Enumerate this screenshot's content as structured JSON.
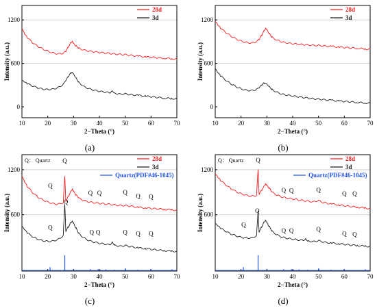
{
  "colors": {
    "red": "#ff1a1a",
    "black": "#1a1a1a",
    "blue": "#2255ee",
    "grid": "#c8c8c8"
  },
  "chart_data": [
    {
      "panel": "(a)",
      "type": "line",
      "xlabel": "2−Theta (°)",
      "ylabel": "Intensity (a.u.)",
      "xlim": [
        10,
        70
      ],
      "ylim": [
        -150,
        1400
      ],
      "xticks": [
        "10",
        "20",
        "30",
        "40",
        "50",
        "60",
        "70"
      ],
      "yticks": [
        "0",
        "600",
        "1200"
      ],
      "grid": "horizontal lines at 600 and 1200",
      "legend": "top-right",
      "note": "",
      "series": [
        {
          "name": "28d",
          "color": "red",
          "x": [
            10,
            11,
            12,
            14,
            16,
            18,
            20,
            22,
            24,
            26,
            27,
            28,
            29,
            29.5,
            30,
            31,
            32,
            34,
            36,
            38,
            40,
            42,
            44,
            46,
            48,
            50,
            52,
            55,
            58,
            60,
            62,
            65,
            68,
            70
          ],
          "y": [
            1080,
            1010,
            960,
            890,
            840,
            800,
            770,
            745,
            730,
            740,
            765,
            830,
            890,
            910,
            880,
            840,
            810,
            785,
            770,
            760,
            752,
            745,
            738,
            730,
            725,
            722,
            712,
            700,
            690,
            685,
            680,
            672,
            665,
            660
          ]
        },
        {
          "name": "3d",
          "color": "black",
          "x": [
            10,
            11,
            12,
            14,
            16,
            18,
            20,
            22,
            24,
            26,
            27,
            28,
            29,
            29.5,
            30,
            31,
            32,
            34,
            36,
            38,
            40,
            42,
            44,
            45,
            46,
            48,
            50,
            52,
            55,
            58,
            60,
            62,
            65,
            68,
            70
          ],
          "y": [
            360,
            340,
            320,
            290,
            265,
            245,
            240,
            245,
            265,
            310,
            360,
            420,
            470,
            485,
            460,
            400,
            340,
            280,
            250,
            230,
            215,
            205,
            195,
            225,
            190,
            175,
            180,
            170,
            158,
            148,
            140,
            132,
            122,
            115,
            110
          ]
        }
      ]
    },
    {
      "panel": "(b)",
      "type": "line",
      "xlabel": "2−Theta (°)",
      "ylabel": "Intensity (a.u.)",
      "xlim": [
        10,
        70
      ],
      "ylim": [
        -150,
        1400
      ],
      "xticks": [
        "10",
        "20",
        "30",
        "40",
        "50",
        "60",
        "70"
      ],
      "yticks": [
        "0",
        "600",
        "1200"
      ],
      "grid": "horizontal lines at 600 and 1200",
      "legend": "top-right",
      "note": "",
      "series": [
        {
          "name": "28d",
          "color": "red",
          "x": [
            10,
            11,
            12,
            14,
            16,
            18,
            20,
            22,
            24,
            26,
            27,
            28,
            29,
            29.5,
            30,
            31,
            32,
            34,
            36,
            38,
            40,
            42,
            44,
            46,
            48,
            50,
            52,
            55,
            58,
            60,
            62,
            65,
            68,
            70
          ],
          "y": [
            1180,
            1130,
            1090,
            1030,
            980,
            940,
            910,
            890,
            880,
            900,
            930,
            990,
            1060,
            1090,
            1070,
            1010,
            960,
            920,
            895,
            880,
            872,
            865,
            860,
            855,
            850,
            848,
            842,
            835,
            825,
            820,
            815,
            808,
            800,
            795
          ]
        },
        {
          "name": "3d",
          "color": "black",
          "x": [
            10,
            11,
            12,
            14,
            16,
            18,
            20,
            22,
            24,
            26,
            27,
            28,
            29,
            29.5,
            30,
            31,
            32,
            34,
            36,
            38,
            40,
            42,
            44,
            46,
            48,
            50,
            52,
            55,
            58,
            60,
            62,
            65,
            68,
            70
          ],
          "y": [
            520,
            470,
            430,
            370,
            320,
            280,
            250,
            230,
            225,
            240,
            260,
            300,
            330,
            335,
            320,
            280,
            240,
            200,
            175,
            160,
            150,
            140,
            130,
            120,
            112,
            108,
            100,
            90,
            80,
            75,
            70,
            62,
            55,
            50
          ]
        }
      ]
    },
    {
      "panel": "(c)",
      "type": "line",
      "xlabel": "2−Theta (°)",
      "ylabel": "Intensity (a.u.)",
      "xlim": [
        10,
        70
      ],
      "ylim": [
        -150,
        1400
      ],
      "xticks": [
        "10",
        "20",
        "30",
        "40",
        "50",
        "60",
        "70"
      ],
      "yticks": [
        "600",
        "1200"
      ],
      "grid": "horizontal lines at 600 and 1200",
      "legend": "top-right",
      "note": "Q： Quartz",
      "series": [
        {
          "name": "28d",
          "color": "red",
          "x": [
            10,
            11,
            12,
            14,
            16,
            18,
            20,
            22,
            24,
            26,
            26.6,
            27,
            28,
            29,
            29.5,
            30,
            31,
            32,
            34,
            36,
            38,
            40,
            42,
            44,
            46,
            48,
            50,
            52,
            55,
            58,
            60,
            62,
            65,
            68,
            70
          ],
          "y": [
            1110,
            1040,
            980,
            900,
            840,
            800,
            770,
            750,
            740,
            760,
            1120,
            780,
            850,
            920,
            940,
            910,
            860,
            820,
            790,
            770,
            760,
            752,
            745,
            738,
            730,
            725,
            722,
            715,
            700,
            690,
            685,
            680,
            672,
            665,
            660
          ]
        },
        {
          "name": "3d",
          "color": "black",
          "x": [
            10,
            11,
            12,
            14,
            16,
            18,
            20,
            22,
            24,
            26,
            26.6,
            27,
            28,
            29,
            29.5,
            30,
            31,
            32,
            34,
            36,
            38,
            40,
            42,
            44,
            45,
            46,
            48,
            50,
            52,
            55,
            58,
            60,
            62,
            65,
            68,
            70
          ],
          "y": [
            440,
            400,
            360,
            310,
            275,
            255,
            245,
            250,
            270,
            320,
            740,
            380,
            440,
            500,
            520,
            490,
            420,
            350,
            290,
            255,
            235,
            220,
            210,
            200,
            235,
            195,
            180,
            190,
            175,
            160,
            148,
            140,
            132,
            122,
            115,
            110
          ]
        },
        {
          "name": "Quartz(PDF#46-1045)",
          "color": "blue",
          "type": "stick",
          "x": [
            20.9,
            26.6,
            36.5,
            39.5,
            40.3,
            42.5,
            45.8,
            50.1,
            54.9,
            59.9,
            64.0,
            68.1
          ],
          "y": [
            22,
            100,
            8,
            8,
            4,
            6,
            4,
            14,
            4,
            9,
            2,
            7
          ]
        }
      ],
      "annotations": [
        {
          "label": "Q",
          "x": 21,
          "y": 960
        },
        {
          "label": "Q",
          "x": 26.6,
          "y": 1290
        },
        {
          "label": "Q",
          "x": 36.5,
          "y": 860
        },
        {
          "label": "Q",
          "x": 40,
          "y": 860
        },
        {
          "label": "Q",
          "x": 50,
          "y": 870
        },
        {
          "label": "Q",
          "x": 55,
          "y": 820
        },
        {
          "label": "Q",
          "x": 60,
          "y": 810
        },
        {
          "label": "Q",
          "x": 27,
          "y": 745
        },
        {
          "label": "Q",
          "x": 21,
          "y": 400
        },
        {
          "label": "Q",
          "x": 37,
          "y": 340
        },
        {
          "label": "Q",
          "x": 39.5,
          "y": 340
        },
        {
          "label": "Q",
          "x": 50,
          "y": 340
        },
        {
          "label": "Q",
          "x": 55,
          "y": 320
        },
        {
          "label": "Q",
          "x": 60,
          "y": 320
        }
      ]
    },
    {
      "panel": "(d)",
      "type": "line",
      "xlabel": "2−Theta (°)",
      "ylabel": "Intensity (a.u.)",
      "xlim": [
        10,
        70
      ],
      "ylim": [
        -150,
        1400
      ],
      "xticks": [
        "10",
        "20",
        "30",
        "40",
        "50",
        "60",
        "70"
      ],
      "yticks": [
        "600",
        "1200"
      ],
      "grid": "horizontal lines at 600 and 1200",
      "legend": "top-right",
      "note": "Q： Quartz",
      "series": [
        {
          "name": "28d",
          "color": "red",
          "x": [
            10,
            11,
            12,
            14,
            16,
            18,
            20,
            22,
            24,
            26,
            26.6,
            27,
            28,
            29,
            29.5,
            30,
            31,
            32,
            34,
            36,
            38,
            40,
            42,
            44,
            46,
            48,
            50,
            52,
            55,
            58,
            60,
            62,
            65,
            68,
            70
          ],
          "y": [
            1140,
            1100,
            1060,
            1000,
            950,
            910,
            880,
            860,
            845,
            860,
            1210,
            880,
            930,
            990,
            1010,
            990,
            950,
            900,
            860,
            835,
            820,
            810,
            800,
            790,
            780,
            772,
            790,
            760,
            745,
            730,
            720,
            712,
            700,
            690,
            680
          ]
        },
        {
          "name": "3d",
          "color": "black",
          "x": [
            10,
            11,
            12,
            14,
            16,
            18,
            20,
            22,
            24,
            26,
            26.6,
            27,
            28,
            29,
            29.5,
            30,
            31,
            32,
            34,
            36,
            38,
            40,
            42,
            44,
            45,
            46,
            48,
            50,
            52,
            55,
            58,
            60,
            62,
            65,
            68,
            70
          ],
          "y": [
            480,
            450,
            420,
            380,
            345,
            320,
            300,
            290,
            290,
            320,
            650,
            370,
            440,
            510,
            530,
            500,
            440,
            380,
            330,
            300,
            285,
            275,
            265,
            258,
            280,
            250,
            242,
            255,
            235,
            222,
            212,
            205,
            198,
            190,
            182,
            175
          ]
        },
        {
          "name": "Quartz(PDF#46-1045)",
          "color": "blue",
          "type": "stick",
          "x": [
            20.9,
            26.6,
            36.5,
            39.5,
            40.3,
            42.5,
            45.8,
            50.1,
            54.9,
            59.9,
            64.0,
            68.1
          ],
          "y": [
            22,
            100,
            8,
            8,
            4,
            6,
            4,
            14,
            4,
            9,
            2,
            7
          ]
        }
      ],
      "annotations": [
        {
          "label": "Q",
          "x": 26.6,
          "y": 1300
        },
        {
          "label": "Q",
          "x": 36.5,
          "y": 900
        },
        {
          "label": "Q",
          "x": 39.5,
          "y": 895
        },
        {
          "label": "Q",
          "x": 50,
          "y": 905
        },
        {
          "label": "Q",
          "x": 60,
          "y": 855
        },
        {
          "label": "Q",
          "x": 64,
          "y": 855
        },
        {
          "label": "Q",
          "x": 21,
          "y": 440
        },
        {
          "label": "Q",
          "x": 26.3,
          "y": 625
        },
        {
          "label": "Q",
          "x": 36.5,
          "y": 360
        },
        {
          "label": "Q",
          "x": 39.5,
          "y": 360
        },
        {
          "label": "Q",
          "x": 50,
          "y": 380
        },
        {
          "label": "Q",
          "x": 60,
          "y": 320
        },
        {
          "label": "Q",
          "x": 64,
          "y": 310
        }
      ]
    }
  ]
}
